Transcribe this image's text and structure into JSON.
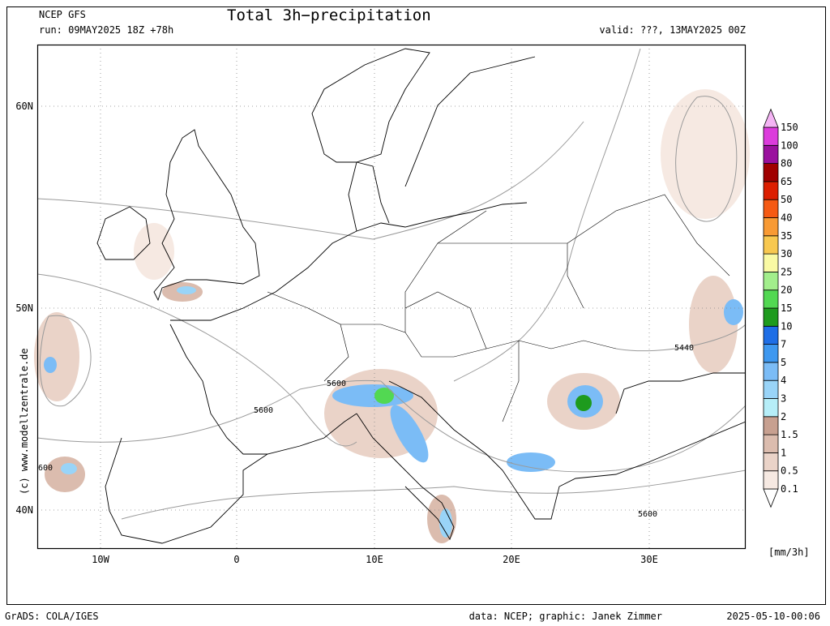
{
  "header": {
    "model": "NCEP GFS",
    "run": "run: 09MAY2025 18Z +78h",
    "title": "Total 3h−precipitation",
    "valid": "valid: ???, 13MAY2025 00Z"
  },
  "map": {
    "lat_labels": [
      "60N",
      "50N",
      "40N"
    ],
    "lon_labels": [
      "10W",
      "0",
      "10E",
      "20E",
      "30E"
    ],
    "contour_labels": [
      "5600",
      "5600",
      "5440",
      "5600",
      "600"
    ],
    "copyright": "(c) www.modellzentrale.de"
  },
  "colorbar": {
    "labels": [
      "0.1",
      "0.5",
      "1",
      "1.5",
      "2",
      "3",
      "4",
      "5",
      "7",
      "10",
      "15",
      "20",
      "25",
      "30",
      "35",
      "40",
      "50",
      "65",
      "80",
      "100",
      "150"
    ],
    "colors": [
      "#ffffff",
      "#f6e9e2",
      "#ead3c8",
      "#dbbcae",
      "#c7a090",
      "#b6eef8",
      "#99d4f8",
      "#7bbcf6",
      "#3e98f0",
      "#1e6ee6",
      "#1e9b1e",
      "#52d852",
      "#a2ee8c",
      "#fafaa4",
      "#f8c850",
      "#f89a34",
      "#f55a14",
      "#dc1e00",
      "#a00000",
      "#9a109e",
      "#dc3cdc",
      "#f4b4f4"
    ],
    "units": "[mm/3h]"
  },
  "footer": {
    "software": "GrADS: COLA/IGES",
    "credits": "data: NCEP; graphic: Janek Zimmer",
    "timestamp": "2025-05-10-00:06"
  }
}
